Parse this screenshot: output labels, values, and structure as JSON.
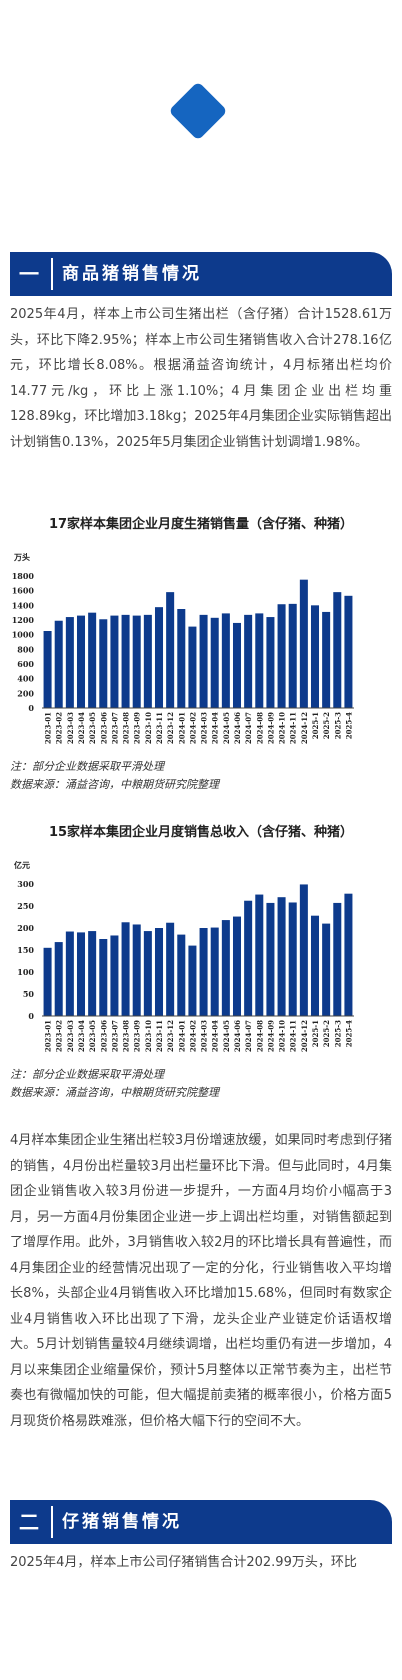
{
  "section1": {
    "num": "一",
    "title": "商品猪销售情况"
  },
  "para1": "2025年4月，样本上市公司生猪出栏（含仔猪）合计1528.61万头，环比下降2.95%；样本上市公司生猪销售收入合计278.16亿元，环比增长8.08%。根据涌益咨询统计，4月标猪出栏均价14.77元/kg，环比上涨1.10%；4月集团企业出栏均重128.89kg，环比增加3.18kg；2025年4月集团企业实际销售超出计划销售0.13%，2025年5月集团企业销售计划调增1.98%。",
  "chart1_title": "17家样本集团企业月度生猪销售量（含仔猪、种猪）",
  "chart1_note1": "注：部分企业数据采取平滑处理",
  "chart1_note2": "数据来源：涌益咨询，中粮期货研究院整理",
  "chart2_title": "15家样本集团企业月度销售总收入（含仔猪、种猪）",
  "chart2_note1": "注：部分企业数据采取平滑处理",
  "chart2_note2": "数据来源：涌益咨询，中粮期货研究院整理",
  "para2": "4月样本集团企业生猪出栏较3月份增速放缓，如果同时考虑到仔猪的销售，4月份出栏量较3月出栏量环比下滑。但与此同时，4月集团企业销售收入较3月份进一步提升，一方面4月均价小幅高于3月，另一方面4月份集团企业进一步上调出栏均重，对销售额起到了增厚作用。此外，3月销售收入较2月的环比增长具有普遍性，而4月集团企业的经营情况出现了一定的分化，行业销售收入平均增长8%，头部企业4月销售收入环比增加15.68%，但同时有数家企业4月销售收入环比出现了下滑，龙头企业产业链定价话语权增大。5月计划销售量较4月继续调增，出栏均重仍有进一步增加，4月以来集团企业缩量保价，预计5月整体以正常节奏为主，出栏节奏也有微幅加快的可能，但大幅提前卖猪的概率很小，价格方面5月现货价格易跌难涨，但价格大幅下行的空间不大。",
  "section2": {
    "num": "二",
    "title": "仔猪销售情况"
  },
  "para3": "2025年4月，样本上市公司仔猪销售合计202.99万头，环比",
  "colors": {
    "bar": "#0d3a8c",
    "header": "#0d3a8c",
    "diamond": "#1565c0"
  },
  "chart_data": [
    {
      "type": "bar",
      "title": "17家样本集团企业月度生猪销售量（含仔猪、种猪）",
      "ylabel": "万头",
      "ylim": [
        0,
        1800
      ],
      "yticks": [
        0,
        200,
        400,
        600,
        800,
        1000,
        1200,
        1400,
        1600,
        1800
      ],
      "categories": [
        "2023-01",
        "2023-02",
        "2023-03",
        "2023-04",
        "2023-05",
        "2023-06",
        "2023-07",
        "2023-08",
        "2023-09",
        "2023-10",
        "2023-11",
        "2023-12",
        "2024-01",
        "2024-02",
        "2024-03",
        "2024-04",
        "2024-05",
        "2024-06",
        "2024-07",
        "2024-08",
        "2024-09",
        "2024-10",
        "2024-11",
        "2024-12",
        "2025-1",
        "2025-2",
        "2025-3",
        "2025-4"
      ],
      "values": [
        1050,
        1190,
        1240,
        1260,
        1300,
        1210,
        1260,
        1270,
        1260,
        1270,
        1375,
        1580,
        1350,
        1110,
        1270,
        1230,
        1290,
        1160,
        1270,
        1290,
        1240,
        1415,
        1420,
        1750,
        1400,
        1310,
        1580,
        1530
      ]
    },
    {
      "type": "bar",
      "title": "15家样本集团企业月度销售总收入（含仔猪、种猪）",
      "ylabel": "亿元",
      "ylim": [
        0,
        300
      ],
      "yticks": [
        0,
        50,
        100,
        150,
        200,
        250,
        300
      ],
      "categories": [
        "2023-01",
        "2023-02",
        "2023-03",
        "2023-04",
        "2023-05",
        "2023-06",
        "2023-07",
        "2023-08",
        "2023-09",
        "2023-10",
        "2023-11",
        "2023-12",
        "2024-01",
        "2024-02",
        "2024-03",
        "2024-04",
        "2024-05",
        "2024-06",
        "2024-07",
        "2024-08",
        "2024-09",
        "2024-10",
        "2024-11",
        "2024-12",
        "2025-1",
        "2025-2",
        "2025-3",
        "2025-4"
      ],
      "values": [
        155,
        168,
        192,
        190,
        193,
        175,
        183,
        213,
        208,
        193,
        200,
        212,
        185,
        160,
        200,
        201,
        218,
        226,
        262,
        276,
        257,
        270,
        258,
        299,
        228,
        210,
        257,
        278
      ]
    }
  ]
}
